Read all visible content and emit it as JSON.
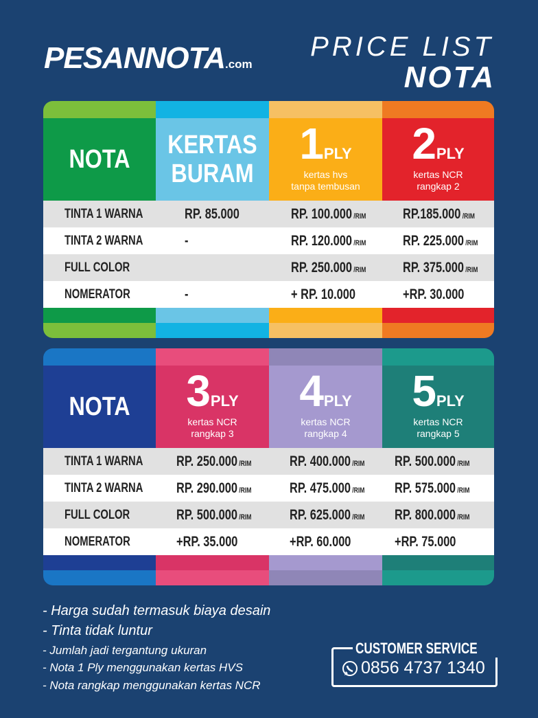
{
  "brand": {
    "name": "PESANNOTA",
    "domain": ".com"
  },
  "title": {
    "line1": "PRICE LIST",
    "line2": "NOTA"
  },
  "tables": [
    {
      "columns": [
        {
          "title": "NOTA"
        },
        {
          "title": "KERTAS BURAM"
        },
        {
          "number": "1",
          "unit": "PLY",
          "desc": [
            "kertas hvs",
            "tanpa tembusan"
          ]
        },
        {
          "number": "2",
          "unit": "PLY",
          "desc": [
            "kertas NCR",
            "rangkap 2"
          ]
        }
      ],
      "rows": [
        {
          "label": "TINTA 1 WARNA",
          "cells": [
            {
              "price": "RP. 85.000"
            },
            {
              "price": "RP. 100.000",
              "unit": "/RIM"
            },
            {
              "price": "RP.185.000",
              "unit": "/RIM"
            }
          ]
        },
        {
          "label": "TINTA 2 WARNA",
          "cells": [
            {
              "price": "-"
            },
            {
              "price": "RP. 120.000",
              "unit": "/RIM"
            },
            {
              "price": "RP. 225.000",
              "unit": "/RIM"
            }
          ]
        },
        {
          "label": "FULL COLOR",
          "cells": [
            null,
            {
              "price": "RP. 250.000",
              "unit": "/RIM"
            },
            {
              "price": "RP. 375.000",
              "unit": "/RIM"
            }
          ]
        },
        {
          "label": "NOMERATOR",
          "cells": [
            {
              "price": "-"
            },
            {
              "price": "+ RP. 10.000"
            },
            {
              "price": "+RP. 30.000"
            }
          ]
        }
      ]
    },
    {
      "columns": [
        {
          "title": "NOTA"
        },
        {
          "number": "3",
          "unit": "PLY",
          "desc": [
            "kertas NCR",
            "rangkap 3"
          ]
        },
        {
          "number": "4",
          "unit": "PLY",
          "desc": [
            "kertas NCR",
            "rangkap 4"
          ]
        },
        {
          "number": "5",
          "unit": "PLY",
          "desc": [
            "kertas NCR",
            "rangkap 5"
          ]
        }
      ],
      "rows": [
        {
          "label": "TINTA 1 WARNA",
          "cells": [
            {
              "price": "RP. 250.000",
              "unit": "/RIM"
            },
            {
              "price": "RP. 400.000",
              "unit": "/RIM"
            },
            {
              "price": "RP. 500.000",
              "unit": "/RIM"
            }
          ]
        },
        {
          "label": "TINTA 2 WARNA",
          "cells": [
            {
              "price": "RP. 290.000",
              "unit": "/RIM"
            },
            {
              "price": "RP. 475.000",
              "unit": "/RIM"
            },
            {
              "price": "RP. 575.000",
              "unit": "/RIM"
            }
          ]
        },
        {
          "label": "FULL COLOR",
          "cells": [
            {
              "price": "RP. 500.000",
              "unit": "/RIM"
            },
            {
              "price": "RP. 625.000",
              "unit": "/RIM"
            },
            {
              "price": "RP. 800.000",
              "unit": "/RIM"
            }
          ]
        },
        {
          "label": "NOMERATOR",
          "cells": [
            {
              "price": "+RP. 35.000"
            },
            {
              "price": "+RP. 60.000"
            },
            {
              "price": "+RP. 75.000"
            }
          ]
        }
      ]
    }
  ],
  "notes": [
    "- Harga sudah termasuk biaya desain",
    "- Tinta tidak luntur",
    "- Jumlah jadi tergantung ukuran",
    "- Nota 1 Ply menggunakan kertas HVS",
    "- Nota rangkap menggunakan kertas NCR"
  ],
  "customer_service": {
    "label": "CUSTOMER SERVICE",
    "phone": "0856 4737 1340"
  }
}
